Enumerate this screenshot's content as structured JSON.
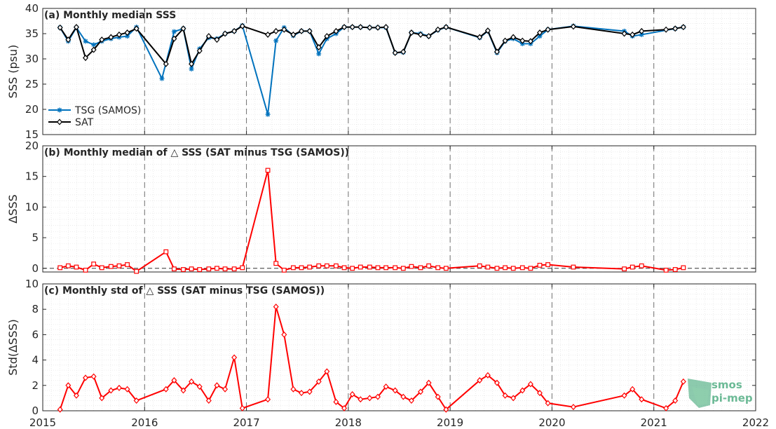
{
  "figure": {
    "x_ticks": [
      "2015",
      "2016",
      "2017",
      "2018",
      "2019",
      "2020",
      "2021",
      "2022"
    ],
    "watermark": {
      "line1": "smos",
      "line2": "pi-mep"
    }
  },
  "chart_data": [
    {
      "type": "line",
      "title": "(a) Monthly median SSS",
      "ylabel": "SSS (psu)",
      "ylim": [
        15,
        40
      ],
      "yticks": [
        "15",
        "20",
        "25",
        "30",
        "35",
        "40"
      ],
      "xlim": [
        2015,
        2022
      ],
      "grid": true,
      "legend_position": "lower-left",
      "series": [
        {
          "name": "TSG (SAMOS)",
          "color": "#0072bd",
          "marker": "asterisk",
          "x": [
            2015.17,
            2015.25,
            2015.33,
            2015.42,
            2015.5,
            2015.58,
            2015.67,
            2015.75,
            2015.83,
            2015.92,
            2016.17,
            2016.29,
            2016.38,
            2016.46,
            2016.54,
            2016.63,
            2016.71,
            2016.79,
            2016.88,
            2016.96,
            2017.21,
            2017.29,
            2017.37,
            2017.46,
            2017.54,
            2017.62,
            2017.71,
            2017.79,
            2017.88,
            2017.96,
            2018.04,
            2018.12,
            2018.21,
            2018.29,
            2018.37,
            2018.46,
            2018.54,
            2018.62,
            2018.71,
            2018.79,
            2018.88,
            2018.96,
            2019.29,
            2019.37,
            2019.46,
            2019.54,
            2019.62,
            2019.71,
            2019.79,
            2019.88,
            2019.96,
            2020.21,
            2020.71,
            2020.79,
            2020.88,
            2021.21,
            2021.29
          ],
          "y": [
            36.2,
            33.5,
            36.2,
            33.5,
            32.8,
            33.5,
            34.0,
            34.3,
            34.5,
            36.3,
            26.1,
            35.4,
            36.0,
            28.0,
            32.0,
            34.2,
            34.0,
            35.0,
            35.5,
            36.6,
            19.0,
            33.6,
            36.2,
            34.6,
            35.5,
            35.5,
            31.0,
            34.0,
            35.0,
            36.3,
            36.3,
            36.3,
            36.2,
            36.2,
            36.2,
            31.2,
            31.3,
            35.2,
            35.0,
            34.5,
            35.7,
            36.3,
            34.2,
            35.5,
            31.2,
            33.5,
            34.0,
            33.0,
            33.0,
            34.5,
            35.8,
            36.5,
            35.5,
            34.5,
            34.8,
            36.0,
            36.3
          ]
        },
        {
          "name": "SAT",
          "color": "#000000",
          "marker": "diamond",
          "x": [
            2015.17,
            2015.25,
            2015.33,
            2015.42,
            2015.5,
            2015.58,
            2015.67,
            2015.75,
            2015.83,
            2015.92,
            2016.21,
            2016.29,
            2016.38,
            2016.46,
            2016.54,
            2016.63,
            2016.71,
            2016.79,
            2016.88,
            2016.96,
            2017.21,
            2017.29,
            2017.37,
            2017.46,
            2017.54,
            2017.62,
            2017.71,
            2017.79,
            2017.88,
            2017.96,
            2018.04,
            2018.12,
            2018.21,
            2018.29,
            2018.37,
            2018.46,
            2018.54,
            2018.62,
            2018.71,
            2018.79,
            2018.88,
            2018.96,
            2019.29,
            2019.37,
            2019.46,
            2019.54,
            2019.62,
            2019.71,
            2019.79,
            2019.88,
            2019.96,
            2020.21,
            2020.71,
            2020.79,
            2020.88,
            2021.12,
            2021.21,
            2021.29
          ],
          "y": [
            36.2,
            33.8,
            36.3,
            30.2,
            31.8,
            33.8,
            34.3,
            34.8,
            35.2,
            36.0,
            29.0,
            34.0,
            36.0,
            29.0,
            31.6,
            34.5,
            33.8,
            35.0,
            35.5,
            36.5,
            34.8,
            35.5,
            35.8,
            34.8,
            35.5,
            35.5,
            32.3,
            34.5,
            35.5,
            36.3,
            36.3,
            36.3,
            36.2,
            36.2,
            36.3,
            31.2,
            31.4,
            35.2,
            34.8,
            34.5,
            35.8,
            36.3,
            34.3,
            35.6,
            31.4,
            33.6,
            34.3,
            33.6,
            33.5,
            35.2,
            35.8,
            36.4,
            35.0,
            34.8,
            35.5,
            35.8,
            36.0,
            36.3
          ]
        }
      ]
    },
    {
      "type": "line",
      "title": "(b) Monthly median of △ SSS (SAT minus TSG (SAMOS))",
      "ylabel": "ΔSSS",
      "ylim": [
        -0.6,
        20
      ],
      "yticks": [
        "0",
        "5",
        "10",
        "15",
        "20"
      ],
      "xlim": [
        2015,
        2022
      ],
      "grid": true,
      "zero_line": true,
      "series": [
        {
          "color": "#ff0000",
          "marker": "square",
          "x": [
            2015.17,
            2015.25,
            2015.33,
            2015.42,
            2015.5,
            2015.58,
            2015.67,
            2015.75,
            2015.83,
            2015.92,
            2016.21,
            2016.29,
            2016.38,
            2016.46,
            2016.54,
            2016.63,
            2016.71,
            2016.79,
            2016.88,
            2016.96,
            2017.21,
            2017.29,
            2017.37,
            2017.46,
            2017.54,
            2017.62,
            2017.71,
            2017.79,
            2017.88,
            2017.96,
            2018.04,
            2018.12,
            2018.21,
            2018.29,
            2018.37,
            2018.46,
            2018.54,
            2018.62,
            2018.71,
            2018.79,
            2018.88,
            2018.96,
            2019.29,
            2019.37,
            2019.46,
            2019.54,
            2019.62,
            2019.71,
            2019.79,
            2019.88,
            2019.96,
            2020.21,
            2020.71,
            2020.79,
            2020.88,
            2021.12,
            2021.21,
            2021.29
          ],
          "y": [
            0.1,
            0.4,
            0.2,
            -0.3,
            0.7,
            0.1,
            0.3,
            0.4,
            0.6,
            -0.5,
            2.7,
            -0.1,
            -0.2,
            -0.1,
            -0.2,
            -0.1,
            0.0,
            -0.1,
            -0.1,
            0.1,
            16.0,
            0.8,
            -0.3,
            0.1,
            0.1,
            0.2,
            0.4,
            0.4,
            0.4,
            0.1,
            0.0,
            0.2,
            0.2,
            0.1,
            0.1,
            0.1,
            0.0,
            0.3,
            0.1,
            0.4,
            0.1,
            0.0,
            0.4,
            0.2,
            0.0,
            0.1,
            0.0,
            0.1,
            0.0,
            0.5,
            0.6,
            0.2,
            -0.1,
            0.2,
            0.4,
            -0.3,
            -0.2,
            0.1
          ]
        }
      ]
    },
    {
      "type": "line",
      "title": "(c) Monthly std of △ SSS (SAT minus TSG (SAMOS))",
      "ylabel": "Std(ΔSSS)",
      "ylim": [
        0,
        10
      ],
      "yticks": [
        "0",
        "2",
        "4",
        "6",
        "8",
        "10"
      ],
      "xlim": [
        2015,
        2022
      ],
      "grid": true,
      "series": [
        {
          "color": "#ff0000",
          "marker": "diamond",
          "x": [
            2015.17,
            2015.25,
            2015.33,
            2015.42,
            2015.5,
            2015.58,
            2015.67,
            2015.75,
            2015.83,
            2015.92,
            2016.21,
            2016.29,
            2016.38,
            2016.46,
            2016.54,
            2016.63,
            2016.71,
            2016.79,
            2016.88,
            2016.96,
            2017.21,
            2017.29,
            2017.37,
            2017.46,
            2017.54,
            2017.62,
            2017.71,
            2017.79,
            2017.88,
            2017.96,
            2018.04,
            2018.12,
            2018.21,
            2018.29,
            2018.37,
            2018.46,
            2018.54,
            2018.62,
            2018.71,
            2018.79,
            2018.88,
            2018.96,
            2019.29,
            2019.37,
            2019.46,
            2019.54,
            2019.62,
            2019.71,
            2019.79,
            2019.88,
            2019.96,
            2020.21,
            2020.71,
            2020.79,
            2020.88,
            2021.12,
            2021.21,
            2021.29
          ],
          "y": [
            0.1,
            2.0,
            1.2,
            2.6,
            2.7,
            1.0,
            1.6,
            1.8,
            1.7,
            0.8,
            1.7,
            2.4,
            1.6,
            2.3,
            1.9,
            0.8,
            2.0,
            1.7,
            4.2,
            0.2,
            0.9,
            8.2,
            6.0,
            1.7,
            1.4,
            1.5,
            2.3,
            3.1,
            0.7,
            0.2,
            1.3,
            0.9,
            1.0,
            1.1,
            1.9,
            1.6,
            1.1,
            0.8,
            1.5,
            2.2,
            1.1,
            0.1,
            2.4,
            2.8,
            2.2,
            1.2,
            1.0,
            1.6,
            2.1,
            1.4,
            0.6,
            0.3,
            1.2,
            1.7,
            0.9,
            0.2,
            0.8,
            2.3
          ]
        }
      ]
    }
  ]
}
